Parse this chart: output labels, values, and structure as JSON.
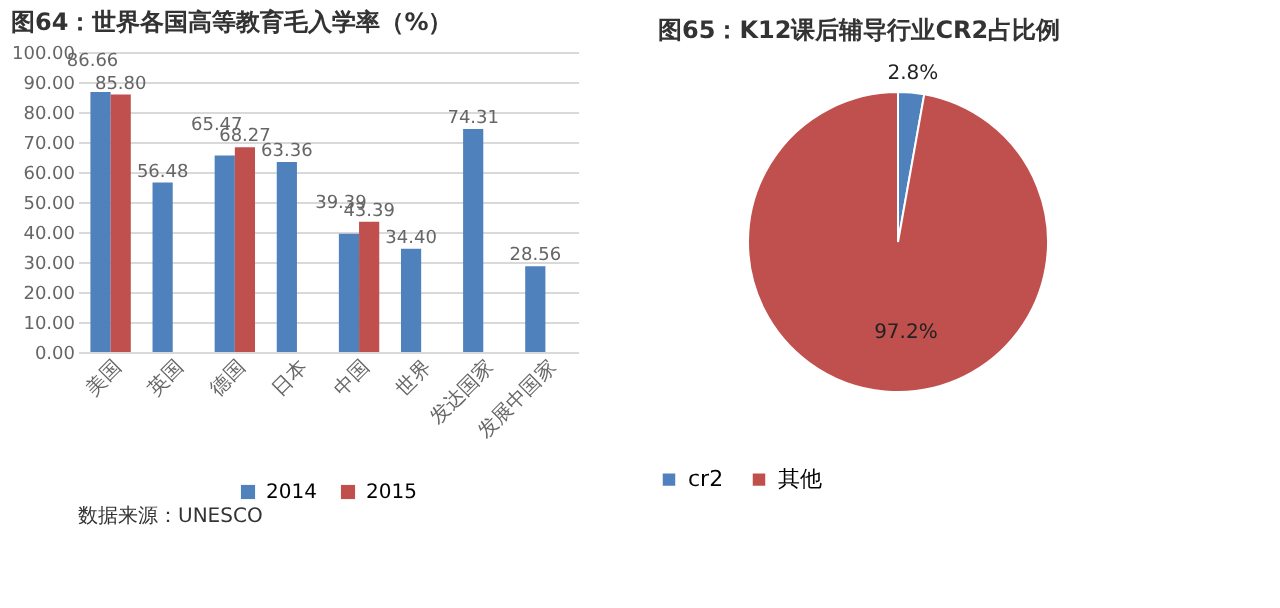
{
  "chart_data": [
    {
      "type": "bar",
      "title": "图64：世界各国高等教育毛入学率（%）",
      "categories": [
        "美国",
        "英国",
        "德国",
        "日本",
        "中国",
        "世界",
        "发达国家",
        "发展中国家"
      ],
      "series": [
        {
          "name": "2014",
          "color": "#4f81bd",
          "values": [
            86.66,
            56.48,
            65.47,
            63.36,
            39.39,
            34.4,
            74.31,
            28.56
          ],
          "value_labels": [
            "86.66",
            "56.48",
            "65.47",
            "63.36",
            "39.39",
            "34.40",
            "74.31",
            "28.56"
          ]
        },
        {
          "name": "2015",
          "color": "#c0504d",
          "values": [
            85.8,
            null,
            68.27,
            null,
            43.39,
            null,
            null,
            null
          ],
          "value_labels": [
            "85.80",
            null,
            "68.27",
            null,
            "43.39",
            null,
            null,
            null
          ]
        }
      ],
      "ylim": [
        0,
        100
      ],
      "yticks": [
        {
          "value": 0,
          "label": "0.00"
        },
        {
          "value": 10,
          "label": "10.00"
        },
        {
          "value": 20,
          "label": "20.00"
        },
        {
          "value": 30,
          "label": "30.00"
        },
        {
          "value": 40,
          "label": "40.00"
        },
        {
          "value": 50,
          "label": "50.00"
        },
        {
          "value": 60,
          "label": "60.00"
        },
        {
          "value": 70,
          "label": "70.00"
        },
        {
          "value": 80,
          "label": "80.00"
        },
        {
          "value": 90,
          "label": "90.00"
        },
        {
          "value": 100,
          "label": "100.00"
        }
      ],
      "grid": "y",
      "legend": "bottom",
      "annotations": [
        "数据来源：UNESCO"
      ]
    },
    {
      "type": "pie",
      "title": "图65：K12课后辅导行业CR2占比例",
      "categories": [
        "cr2",
        "其他"
      ],
      "values": [
        2.8,
        97.2
      ],
      "colors": [
        "#4f81bd",
        "#c0504d"
      ],
      "value_labels": [
        "2.8%",
        "97.2%"
      ],
      "legend": "bottom"
    }
  ]
}
